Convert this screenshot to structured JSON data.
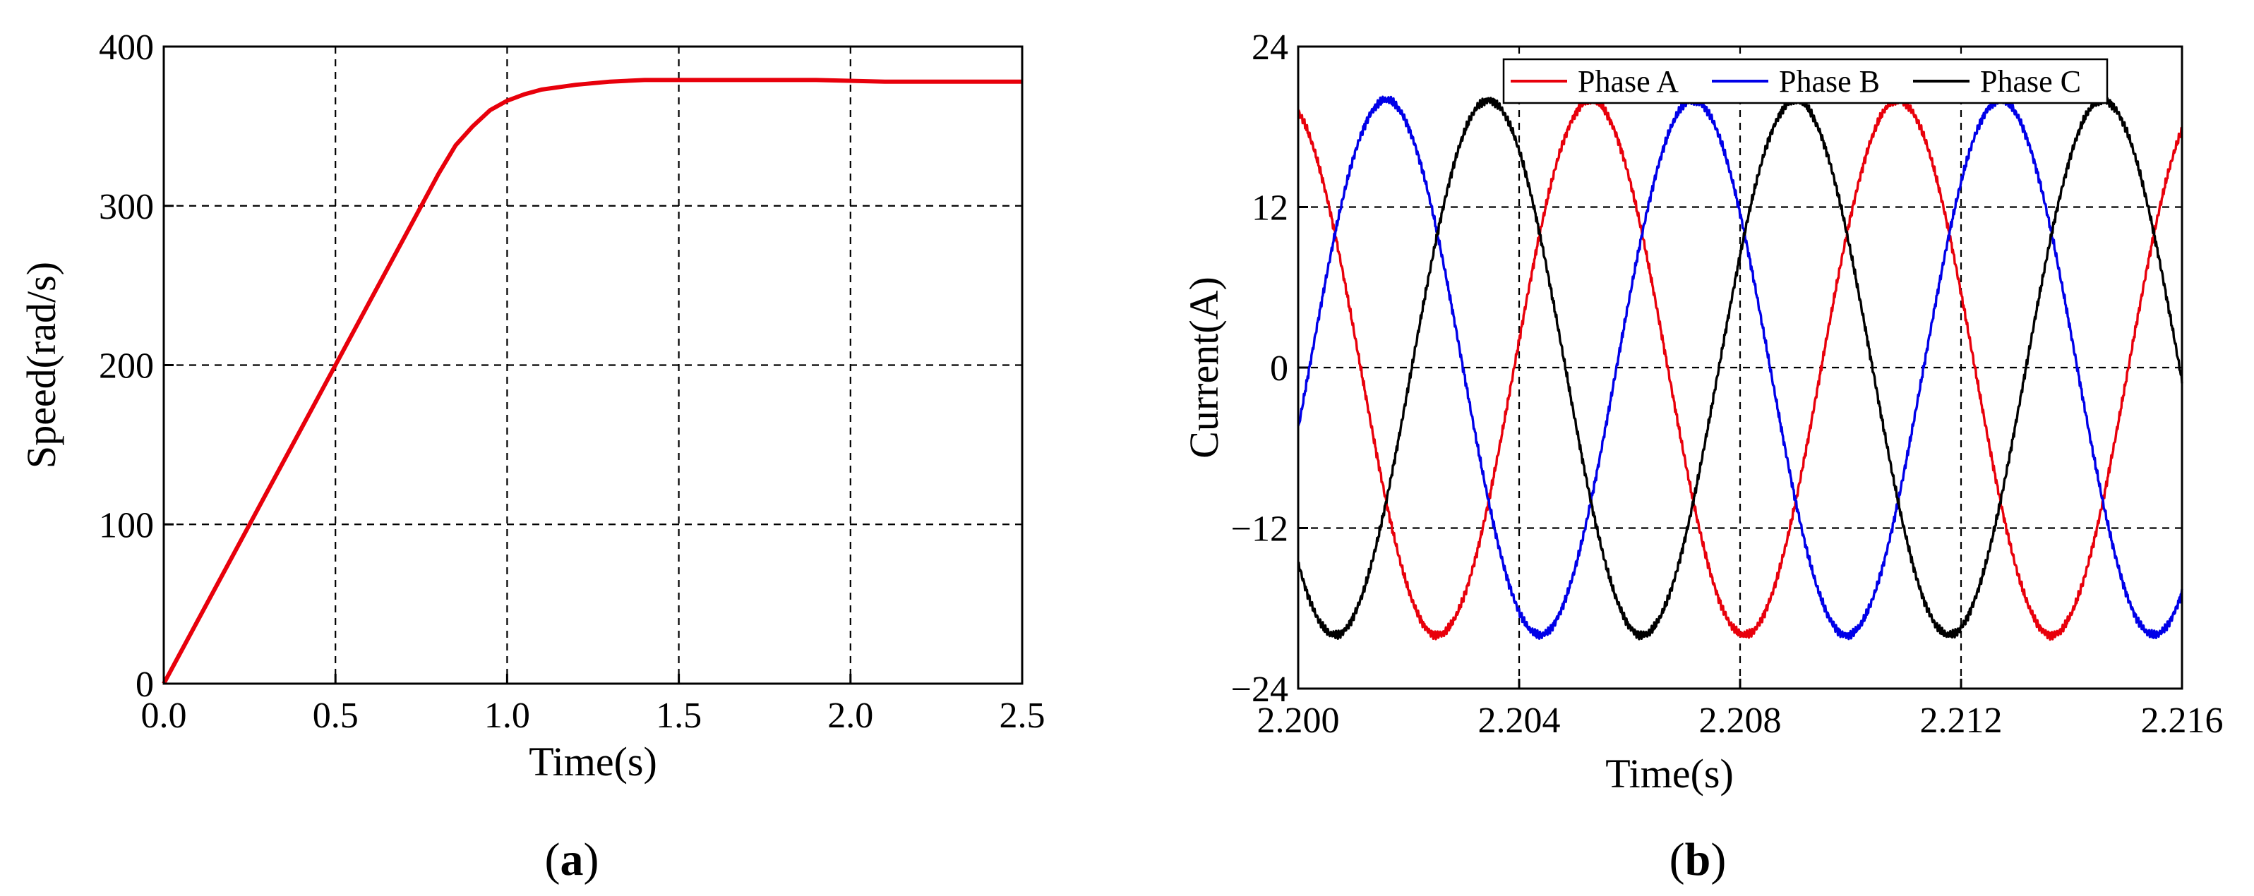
{
  "chart_data": [
    {
      "type": "line",
      "panel_label": "a",
      "xlabel": "Time(s)",
      "ylabel": "Speed(rad/s)",
      "xlim": [
        0,
        2.5
      ],
      "ylim": [
        0,
        400
      ],
      "xticks": [
        "0.0",
        "0.5",
        "1.0",
        "1.5",
        "2.0",
        "2.5"
      ],
      "yticks": [
        "0",
        "100",
        "200",
        "300",
        "400"
      ],
      "grid": true,
      "series": [
        {
          "color": "#e8000b",
          "x": [
            0,
            0.1,
            0.2,
            0.3,
            0.4,
            0.5,
            0.6,
            0.7,
            0.75,
            0.8,
            0.85,
            0.9,
            0.95,
            1.0,
            1.05,
            1.1,
            1.2,
            1.3,
            1.4,
            1.5,
            1.7,
            1.9,
            2.1,
            2.3,
            2.5
          ],
          "y": [
            0,
            40,
            80,
            120,
            160,
            200,
            240,
            280,
            300,
            320,
            338,
            350,
            360,
            366,
            370,
            373,
            376,
            378,
            379,
            379,
            379,
            379,
            378,
            378,
            378
          ]
        }
      ]
    },
    {
      "type": "line",
      "panel_label": "b",
      "xlabel": "Time(s)",
      "ylabel": "Current(A)",
      "xlim": [
        2.2,
        2.216
      ],
      "ylim": [
        -24,
        24
      ],
      "xticks": [
        "2.200",
        "2.204",
        "2.208",
        "2.212",
        "2.216"
      ],
      "yticks": [
        "24",
        "12",
        "0",
        "−12",
        "−24"
      ],
      "grid": true,
      "legend": "top-right",
      "waveform": {
        "amplitude": 20,
        "period": 0.00556,
        "phase_a_peak_time": 2.2053
      },
      "series": [
        {
          "name": "Phase A",
          "color": "#e8000b",
          "phase_offset_deg": 0
        },
        {
          "name": "Phase B",
          "color": "#0000e8",
          "phase_offset_deg": -120
        },
        {
          "name": "Phase C",
          "color": "#000000",
          "phase_offset_deg": 120
        }
      ]
    }
  ]
}
